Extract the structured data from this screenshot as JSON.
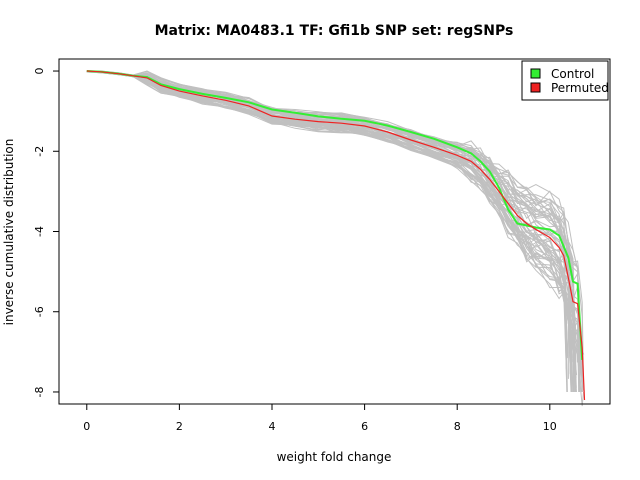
{
  "chart_data": {
    "type": "line",
    "title": "Matrix: MA0483.1 TF: Gfi1b SNP set: regSNPs",
    "xlabel": "weight fold change",
    "ylabel": "inverse cumulative distribution",
    "xlim": [
      -0.6,
      11.3
    ],
    "ylim": [
      -8.3,
      0.3
    ],
    "x_ticks": [
      0,
      2,
      4,
      6,
      8,
      10
    ],
    "y_ticks": [
      0,
      -2,
      -4,
      -6,
      -8
    ],
    "x_tick_labels": [
      "0",
      "2",
      "4",
      "6",
      "8",
      "10"
    ],
    "y_tick_labels": [
      "0",
      "-2",
      "-4",
      "-6",
      "-8"
    ],
    "grid": false,
    "legend": {
      "position": "top-right",
      "entries": [
        {
          "label": "Control",
          "color": "#33ee33"
        },
        {
          "label": "Permuted",
          "color": "#ee2222"
        }
      ]
    },
    "background_series": {
      "description_count": 60,
      "color": "#c0c0c0"
    },
    "series": [
      {
        "name": "Control",
        "color": "#33ee33",
        "x": [
          0.0,
          0.3,
          0.7,
          1.0,
          1.3,
          1.6,
          2.0,
          2.5,
          3.0,
          3.5,
          4.0,
          4.5,
          5.0,
          5.5,
          6.0,
          6.5,
          7.0,
          7.5,
          8.0,
          8.3,
          8.5,
          8.7,
          8.9,
          9.1,
          9.3,
          9.5,
          9.7,
          10.0,
          10.2,
          10.4,
          10.5,
          10.6,
          10.7
        ],
        "y": [
          0.0,
          -0.02,
          -0.07,
          -0.12,
          -0.15,
          -0.33,
          -0.45,
          -0.57,
          -0.67,
          -0.78,
          -0.96,
          -1.04,
          -1.13,
          -1.19,
          -1.24,
          -1.36,
          -1.52,
          -1.69,
          -1.9,
          -2.05,
          -2.25,
          -2.5,
          -2.9,
          -3.45,
          -3.8,
          -3.85,
          -3.9,
          -3.95,
          -4.1,
          -4.65,
          -5.25,
          -5.3,
          -7.2
        ]
      },
      {
        "name": "Permuted",
        "color": "#ee2222",
        "x": [
          0.0,
          0.3,
          0.7,
          1.0,
          1.3,
          1.6,
          2.0,
          2.5,
          3.0,
          3.5,
          4.0,
          4.5,
          5.0,
          5.5,
          6.0,
          6.5,
          7.0,
          7.5,
          8.0,
          8.3,
          8.5,
          8.7,
          8.9,
          9.1,
          9.3,
          9.5,
          9.7,
          10.0,
          10.2,
          10.3,
          10.4,
          10.5,
          10.6,
          10.7,
          10.75
        ],
        "y": [
          0.0,
          -0.02,
          -0.07,
          -0.12,
          -0.17,
          -0.36,
          -0.5,
          -0.62,
          -0.73,
          -0.87,
          -1.12,
          -1.2,
          -1.26,
          -1.3,
          -1.37,
          -1.52,
          -1.72,
          -1.9,
          -2.1,
          -2.25,
          -2.45,
          -2.7,
          -3.0,
          -3.3,
          -3.6,
          -3.8,
          -3.95,
          -4.15,
          -4.4,
          -4.6,
          -5.15,
          -5.75,
          -5.8,
          -6.9,
          -8.2
        ]
      }
    ]
  }
}
